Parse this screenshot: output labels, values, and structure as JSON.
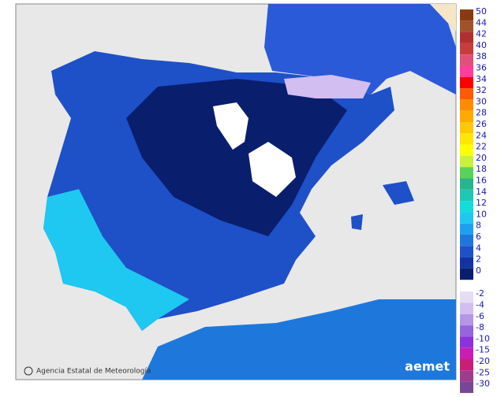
{
  "footer": {
    "agency": "Agencia Estatal de Meteorología",
    "logo": "aemet"
  },
  "legend": [
    {
      "value": 50,
      "color": "#8b3a0f"
    },
    {
      "value": 44,
      "color": "#a0522d"
    },
    {
      "value": 42,
      "color": "#b03030"
    },
    {
      "value": 40,
      "color": "#c83c3c"
    },
    {
      "value": 38,
      "color": "#e0507a"
    },
    {
      "value": 36,
      "color": "#ff3ca0"
    },
    {
      "value": 34,
      "color": "#ff0000"
    },
    {
      "value": 32,
      "color": "#ff5a00"
    },
    {
      "value": 30,
      "color": "#ff8c00"
    },
    {
      "value": 28,
      "color": "#ffaa00"
    },
    {
      "value": 26,
      "color": "#ffc800"
    },
    {
      "value": 24,
      "color": "#ffe600"
    },
    {
      "value": 22,
      "color": "#ffff00"
    },
    {
      "value": 20,
      "color": "#c8f03c"
    },
    {
      "value": 18,
      "color": "#5ad25a"
    },
    {
      "value": 16,
      "color": "#28b48c"
    },
    {
      "value": 14,
      "color": "#1ec8b4"
    },
    {
      "value": 12,
      "color": "#14dcdc"
    },
    {
      "value": 10,
      "color": "#1ec8f0"
    },
    {
      "value": 8,
      "color": "#1ea0f0"
    },
    {
      "value": 6,
      "color": "#1e78dc"
    },
    {
      "value": 4,
      "color": "#1e50c8"
    },
    {
      "value": 2,
      "color": "#1432a0"
    },
    {
      "value": 0,
      "color": "#0a1e6e"
    },
    {
      "value": -2,
      "color": "#e6dcf5"
    },
    {
      "value": -4,
      "color": "#d2bef0"
    },
    {
      "value": -6,
      "color": "#b496e6"
    },
    {
      "value": -8,
      "color": "#9664dc"
    },
    {
      "value": -10,
      "color": "#8c32dc"
    },
    {
      "value": -15,
      "color": "#c81eb4"
    },
    {
      "value": -20,
      "color": "#c81e78"
    },
    {
      "value": -25,
      "color": "#a03c8c"
    },
    {
      "value": -30,
      "color": "#784696"
    }
  ]
}
